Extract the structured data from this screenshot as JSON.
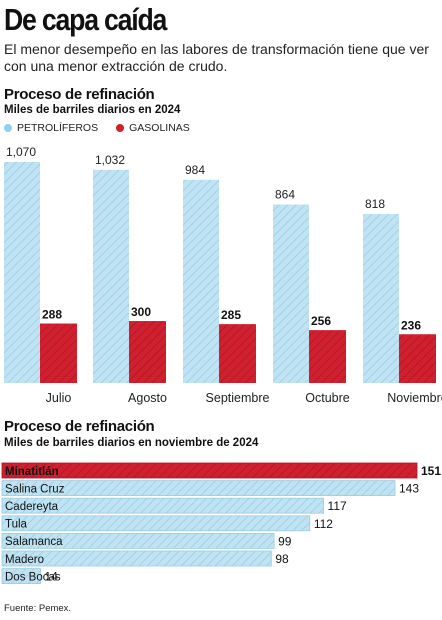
{
  "headline": "De capa caída",
  "subhead": "El menor desempeño en las labores de transformación tiene que ver con una menor extracción de crudo.",
  "source": "Fuente: Pemex.",
  "colors": {
    "petroliferos": "#bfe3f3",
    "petroliferos_stroke": "#8fc6df",
    "gasolinas": "#d0202f",
    "gasolinas_hatch": "#a5141f"
  },
  "chart_data": [
    {
      "type": "bar",
      "title": "Proceso de refinación",
      "subtitle": "Miles de barriles diarios en 2024",
      "categories": [
        "Julio",
        "Agosto",
        "Septiembre",
        "Octubre",
        "Noviembre"
      ],
      "series": [
        {
          "name": "PETROLÍFEROS",
          "values": [
            1070,
            1032,
            984,
            864,
            818
          ]
        },
        {
          "name": "GASOLINAS",
          "values": [
            288,
            300,
            285,
            256,
            236
          ]
        }
      ],
      "value_labels": {
        "PETROLÍFEROS": [
          "1,070",
          "1,032",
          "984",
          "864",
          "818"
        ],
        "GASOLINAS": [
          "288",
          "300",
          "285",
          "256",
          "236"
        ]
      },
      "ylim": [
        0,
        1070
      ],
      "grid": false,
      "legend": "top-left"
    },
    {
      "type": "bar",
      "orientation": "horizontal",
      "title": "Proceso de refinación",
      "subtitle": "Miles de barriles diarios en noviembre de 2024",
      "categories": [
        "Minatitlán",
        "Salina Cruz",
        "Cadereyta",
        "Tula",
        "Salamanca",
        "Madero",
        "Dos Bocas"
      ],
      "values": [
        151,
        143,
        117,
        112,
        99,
        98,
        14
      ],
      "highlight": "Minatitlán",
      "xlim": [
        0,
        151
      ],
      "grid": false
    }
  ]
}
